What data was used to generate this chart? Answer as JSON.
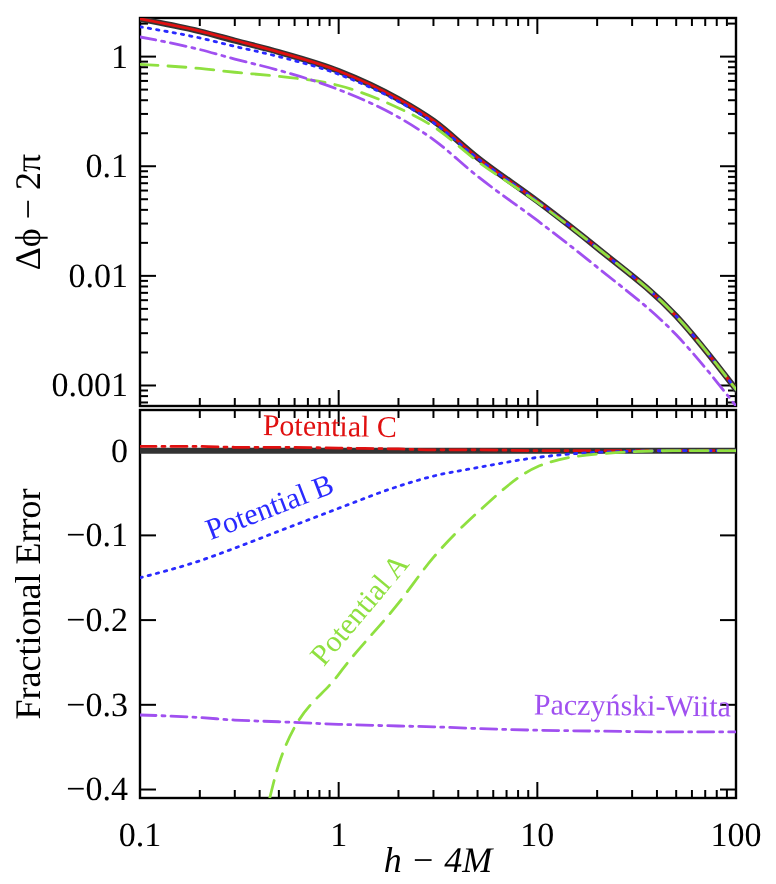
{
  "chart_data": [
    {
      "type": "line",
      "ylabel": "Δϕ − 2π",
      "log": "xy",
      "tick_labels": "y",
      "xlim": [
        0.1,
        100
      ],
      "xticks": [
        0.1,
        1,
        10,
        100
      ],
      "ylim": [
        0.00065,
        2.25
      ],
      "yticks": [
        1,
        0.1,
        0.01,
        0.001
      ],
      "x": [
        0.1,
        0.2,
        0.3,
        0.5,
        1,
        2,
        3,
        5,
        10,
        20,
        50,
        100
      ],
      "series": [
        {
          "color": "#333333",
          "line_style": "solid",
          "values": [
            2.2,
            1.7,
            1.4,
            1.1,
            0.74,
            0.41,
            0.26,
            0.12,
            0.048,
            0.018,
            0.0043,
            0.00092
          ]
        },
        {
          "color": "#e01010",
          "line_style": "solid",
          "values": [
            2.21,
            1.71,
            1.41,
            1.1,
            0.74,
            0.41,
            0.26,
            0.12,
            0.048,
            0.018,
            0.0043,
            0.00092
          ]
        },
        {
          "color": "#2a2aff",
          "line_style": "dotted",
          "values": [
            1.87,
            1.48,
            1.24,
            1.0,
            0.69,
            0.39,
            0.25,
            0.118,
            0.048,
            0.018,
            0.0043,
            0.00092
          ]
        },
        {
          "color": "#8fe040",
          "line_style": "dashed",
          "values": [
            0.85,
            0.78,
            0.72,
            0.66,
            0.545,
            0.34,
            0.23,
            0.111,
            0.047,
            0.018,
            0.0043,
            0.00092
          ]
        },
        {
          "color": "#a050f0",
          "line_style": "dashdot",
          "values": [
            1.51,
            1.16,
            0.95,
            0.75,
            0.5,
            0.28,
            0.175,
            0.081,
            0.032,
            0.012,
            0.0029,
            0.00065
          ]
        }
      ]
    },
    {
      "type": "line",
      "xlabel": "h − 4M",
      "ylabel": "Fractional Error",
      "log": "x",
      "xlim": [
        0.1,
        100
      ],
      "xticks": [
        0.1,
        1,
        10,
        100
      ],
      "ylim": [
        -0.41,
        0.048
      ],
      "yticks": [
        0,
        {
          "value": -0.1,
          "label": "−0.1"
        },
        {
          "value": -0.2,
          "label": "−0.2"
        },
        {
          "value": -0.3,
          "label": "−0.3"
        },
        {
          "value": -0.4,
          "label": "−0.4"
        }
      ],
      "x": [
        0.1,
        0.2,
        0.3,
        0.5,
        1,
        2,
        3,
        5,
        10,
        20,
        50,
        100
      ],
      "series": [
        {
          "color": "#333333",
          "line_style": "solid",
          "values": [
            0,
            0,
            0,
            0,
            0,
            0,
            0,
            0,
            0,
            0,
            0,
            0
          ]
        },
        {
          "name": "Potential C",
          "color": "#e01010",
          "line_style": "dashdot",
          "values": [
            0.005,
            0.005,
            0.004,
            0.004,
            0.003,
            0.002,
            0.001,
            0.001,
            0,
            0,
            0,
            0
          ]
        },
        {
          "name": "Potential B",
          "color": "#2a2aff",
          "line_style": "dotted",
          "values": [
            -0.15,
            -0.13,
            -0.115,
            -0.095,
            -0.068,
            -0.042,
            -0.03,
            -0.02,
            -0.008,
            -0.002,
            0,
            0
          ]
        },
        {
          "name": "Potential A",
          "color": "#8fe040",
          "line_style": "dashed",
          "x": [
            0.45,
            0.5,
            1,
            2,
            3,
            5,
            10,
            20,
            50,
            100
          ],
          "values": [
            -0.41,
            -0.37,
            -0.264,
            -0.18,
            -0.126,
            -0.073,
            -0.019,
            -0.004,
            0,
            0
          ]
        },
        {
          "name": "Paczyński-Wiita",
          "color": "#a050f0",
          "line_style": "dashdot",
          "values": [
            -0.312,
            -0.315,
            -0.318,
            -0.32,
            -0.323,
            -0.325,
            -0.326,
            -0.328,
            -0.33,
            -0.331,
            -0.332,
            -0.332
          ]
        }
      ]
    }
  ]
}
